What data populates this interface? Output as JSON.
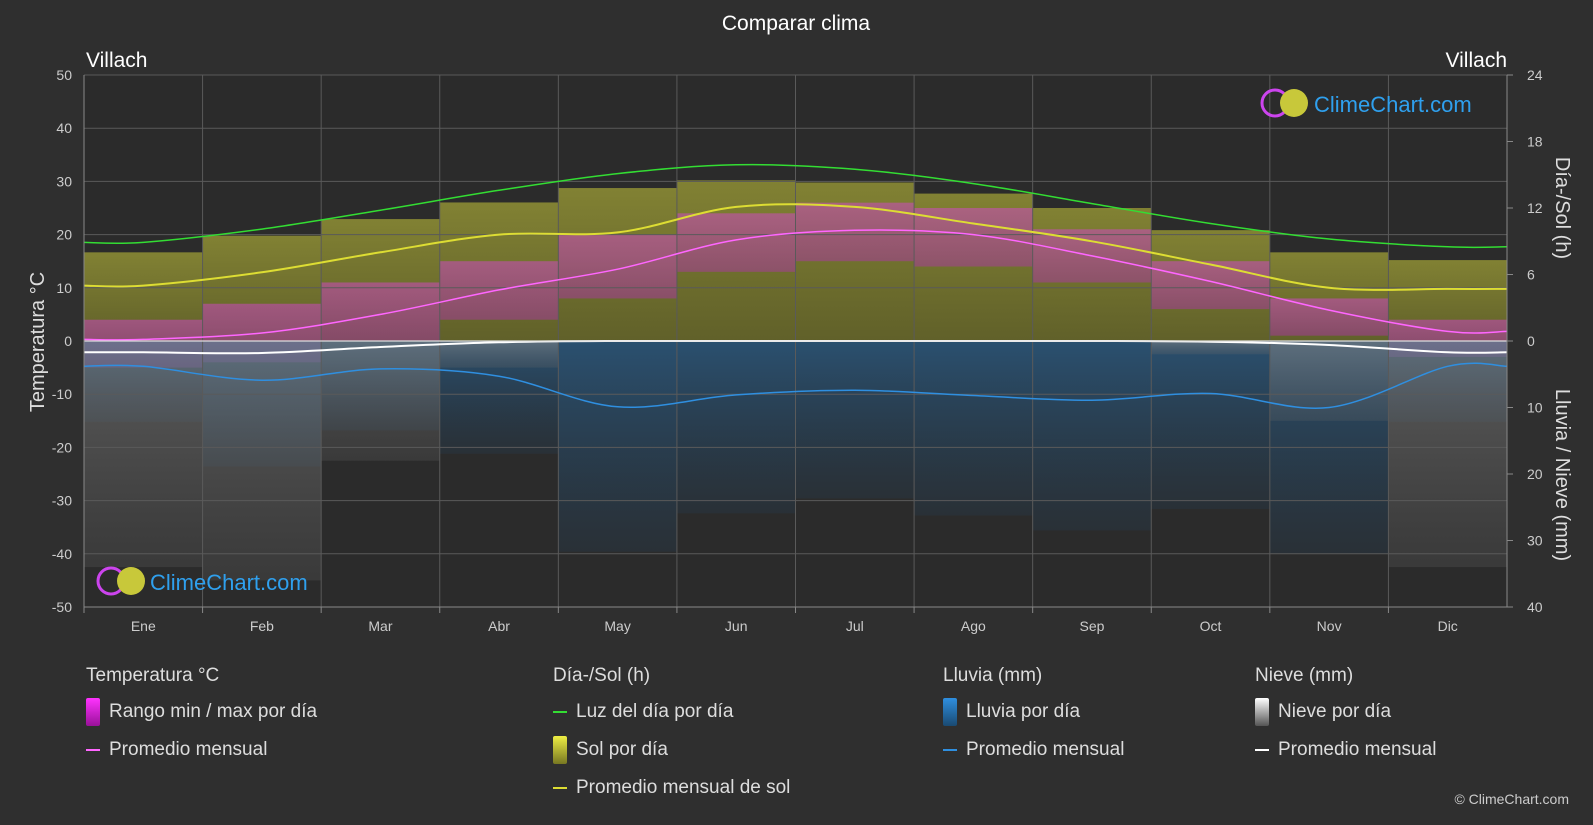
{
  "title": "Comparar clima",
  "city_left": "Villach",
  "city_right": "Villach",
  "brand": "ClimeChart.com",
  "copyright": "© ClimeChart.com",
  "chart_data": {
    "type": "area",
    "months": [
      "Ene",
      "Feb",
      "Mar",
      "Abr",
      "May",
      "Jun",
      "Jul",
      "Ago",
      "Sep",
      "Oct",
      "Nov",
      "Dic"
    ],
    "axes": {
      "left": {
        "label": "Temperatura °C",
        "ticks": [
          50,
          40,
          30,
          20,
          10,
          0,
          -10,
          -20,
          -30,
          -40,
          -50
        ],
        "range": [
          -50,
          50
        ]
      },
      "right_top": {
        "label": "Día-/Sol (h)",
        "ticks": [
          24,
          18,
          12,
          6,
          0
        ],
        "range": [
          0,
          24
        ]
      },
      "right_bottom": {
        "label": "Lluvia / Nieve (mm)",
        "ticks": [
          0,
          10,
          20,
          30,
          40
        ],
        "range": [
          0,
          40
        ]
      }
    },
    "series": [
      {
        "name": "Luz del día por día",
        "unit": "h",
        "color": "#33dd33",
        "values": [
          8.9,
          10.1,
          11.8,
          13.6,
          15.1,
          15.9,
          15.5,
          14.2,
          12.4,
          10.6,
          9.2,
          8.5
        ]
      },
      {
        "name": "Promedio mensual de sol",
        "unit": "h",
        "color": "#dddd33",
        "values": [
          5.0,
          6.2,
          8.0,
          9.6,
          9.8,
          12.1,
          12.1,
          10.6,
          9.0,
          6.9,
          4.8,
          4.7
        ]
      },
      {
        "name": "Promedio mensual",
        "group": "Temperatura °C",
        "unit": "°C",
        "color": "#ff66ff",
        "values": [
          0.3,
          1.5,
          5.0,
          9.6,
          13.5,
          19.0,
          20.8,
          20.0,
          16.0,
          11.2,
          5.8,
          1.8
        ]
      },
      {
        "name": "Promedio mensual",
        "group": "Lluvia (mm)",
        "unit": "mm",
        "color": "#2f8fe0",
        "values": [
          3.8,
          5.9,
          4.2,
          5.3,
          9.9,
          8.1,
          7.4,
          8.2,
          8.9,
          7.9,
          10.0,
          3.8
        ]
      },
      {
        "name": "Promedio mensual",
        "group": "Nieve (mm)",
        "unit": "mm",
        "color": "#ffffff",
        "values": [
          1.7,
          1.8,
          0.9,
          0.2,
          0.0,
          0.0,
          0.0,
          0.0,
          0.0,
          0.1,
          0.6,
          1.7
        ]
      }
    ],
    "temp_range_daily": {
      "name": "Rango min / max por día",
      "color": "#cc33cc",
      "min": [
        -5,
        -4,
        0,
        4,
        8,
        13,
        15,
        14,
        11,
        6,
        1,
        -3
      ],
      "max": [
        4,
        7,
        11,
        15,
        20,
        24,
        26,
        25,
        21,
        15,
        8,
        4
      ]
    },
    "sun_daily_max": [
      8.0,
      9.5,
      11.0,
      12.5,
      13.8,
      14.5,
      14.3,
      13.3,
      12.0,
      10.0,
      8.0,
      7.3
    ],
    "grid": true,
    "legend_placement": "bottom"
  },
  "legend": {
    "groups": [
      {
        "title": "Temperatura °C",
        "items": [
          {
            "label": "Rango min / max por día",
            "kind": "box",
            "color": "#dd22dd"
          },
          {
            "label": "Promedio mensual",
            "kind": "line",
            "color": "#ff66ff"
          }
        ]
      },
      {
        "title": "Día-/Sol (h)",
        "items": [
          {
            "label": "Luz del día por día",
            "kind": "line",
            "color": "#33dd33"
          },
          {
            "label": "Sol por día",
            "kind": "box",
            "color": "#cccc33"
          },
          {
            "label": "Promedio mensual de sol",
            "kind": "line",
            "color": "#dddd33"
          }
        ]
      },
      {
        "title": "Lluvia (mm)",
        "items": [
          {
            "label": "Lluvia por día",
            "kind": "box",
            "color": "#2f8fe0"
          },
          {
            "label": "Promedio mensual",
            "kind": "line",
            "color": "#2f8fe0"
          }
        ]
      },
      {
        "title": "Nieve (mm)",
        "items": [
          {
            "label": "Nieve por día",
            "kind": "box",
            "color": "#dddddd"
          },
          {
            "label": "Promedio mensual",
            "kind": "line",
            "color": "#ffffff"
          }
        ]
      }
    ]
  }
}
